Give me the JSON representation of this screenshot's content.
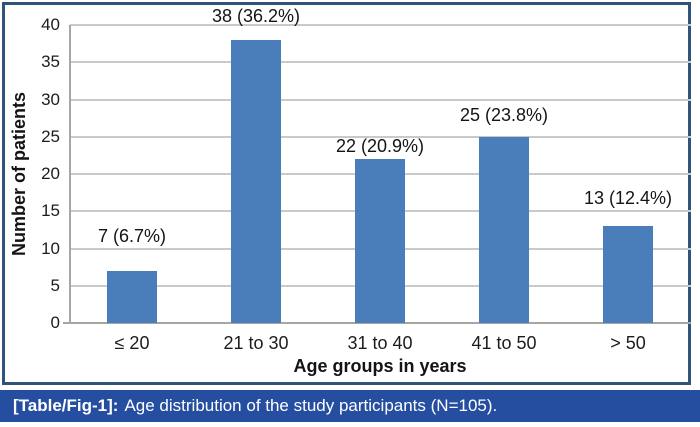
{
  "chart_data": {
    "type": "bar",
    "categories": [
      "≤ 20",
      "21 to 30",
      "31 to 40",
      "41 to 50",
      "> 50"
    ],
    "values": [
      7,
      38,
      22,
      25,
      13
    ],
    "value_labels": [
      "7 (6.7%)",
      "38 (36.2%)",
      "22 (20.9%)",
      "25 (23.8%)",
      "13 (12.4%)"
    ],
    "xlabel": "Age groups in years",
    "ylabel": "Number of patients",
    "ylim": [
      0,
      40
    ],
    "ytick_step": 5,
    "yticks": [
      0,
      5,
      10,
      15,
      20,
      25,
      30,
      35,
      40
    ],
    "grid": "horizontal",
    "legend": "none",
    "bar_color": "#4a7ebb"
  },
  "caption": {
    "prefix": "[Table/Fig-1]:",
    "text": "Age distribution of the study participants (N=105).",
    "bg_color": "#264ea0"
  },
  "colors": {
    "frame_border": "#2f5478",
    "gridline": "#c9c9c9",
    "axis": "#a6a6a6",
    "text": "#141414"
  }
}
